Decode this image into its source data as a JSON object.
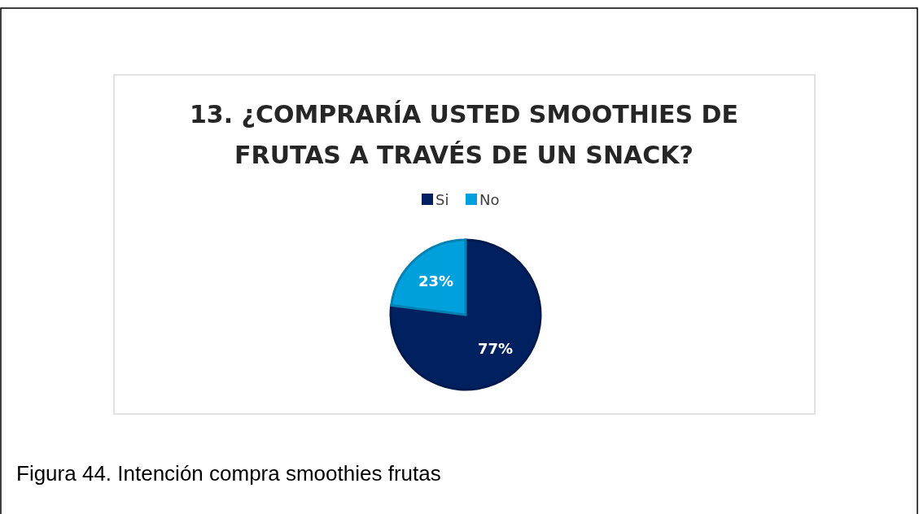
{
  "chart_data": {
    "type": "pie",
    "title": "13. ¿COMPRARÍA USTED SMOOTHIES DE FRUTAS A TRAVÉS DE UN SNACK?",
    "categories": [
      "Si",
      "No"
    ],
    "values": [
      77,
      23
    ],
    "colors": [
      "#002060",
      "#00a0dc"
    ],
    "value_labels": [
      "77%",
      "23%"
    ],
    "legend": "top",
    "annotations": [
      "Figura 44. Intención compra smoothies frutas"
    ]
  }
}
